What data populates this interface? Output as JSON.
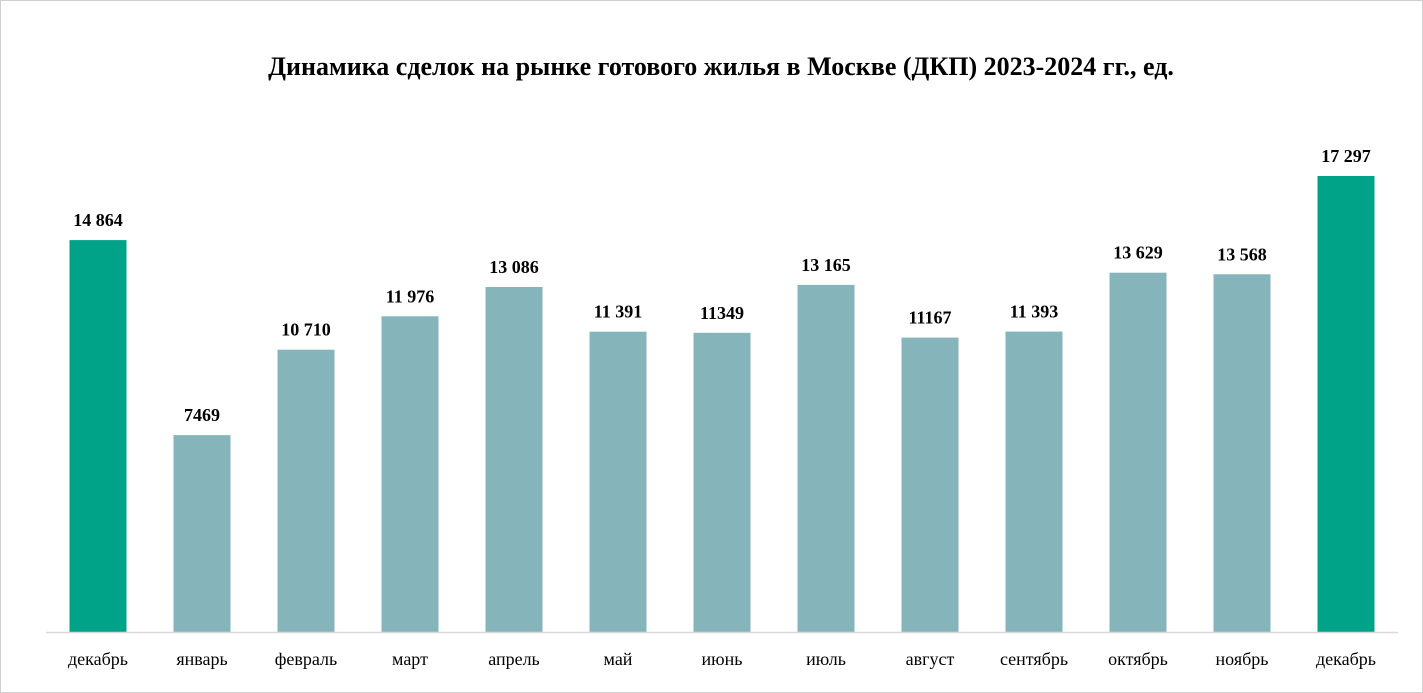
{
  "chart_data": {
    "type": "bar",
    "title": "Динамика сделок на рынке готового жилья в Москве (ДКП) 2023-2024 гг., ед.",
    "xlabel": "",
    "ylabel": "",
    "ylim": [
      0,
      17297
    ],
    "grid": false,
    "legend": "none",
    "categories": [
      "декабрь",
      "январь",
      "февраль",
      "март",
      "апрель",
      "май",
      "июнь",
      "июль",
      "август",
      "сентябрь",
      "октябрь",
      "ноябрь",
      "декабрь"
    ],
    "values": [
      14864,
      7469,
      10710,
      11976,
      13086,
      11391,
      11349,
      13165,
      11167,
      11393,
      13629,
      13568,
      17297
    ],
    "value_labels": [
      "14 864",
      "7469",
      "10 710",
      "11 976",
      "13 086",
      "11 391",
      "11349",
      "13 165",
      "11167",
      "11 393",
      "13 629",
      "13 568",
      "17 297"
    ],
    "colors": [
      "#00a387",
      "#86b4bb",
      "#86b4bb",
      "#86b4bb",
      "#86b4bb",
      "#86b4bb",
      "#86b4bb",
      "#86b4bb",
      "#86b4bb",
      "#86b4bb",
      "#86b4bb",
      "#86b4bb",
      "#00a387"
    ],
    "axis_color": "#d9d9d9"
  }
}
